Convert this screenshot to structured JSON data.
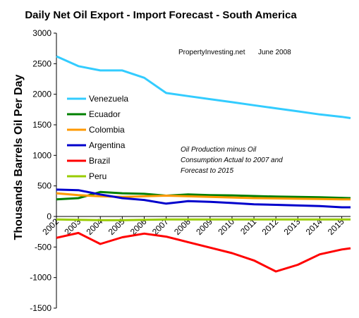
{
  "chart_data": {
    "type": "line",
    "title": "Daily Net Oil Export - Import Forecast - South America",
    "ylabel": "Thousands Barrels Oil Per Day",
    "ylim": [
      -1500,
      3000
    ],
    "yticks": [
      -1500,
      -1000,
      -500,
      0,
      500,
      1000,
      1500,
      2000,
      2500,
      3000
    ],
    "x": [
      2002,
      2003,
      2004,
      2005,
      2006,
      2007,
      2008,
      2009,
      2010,
      2011,
      2012,
      2013,
      2014,
      2015
    ],
    "xtick_labels": [
      "2002",
      "2003",
      "2004",
      "2005",
      "2006",
      "2007",
      "2008",
      "2009",
      "2010",
      "2011",
      "2012",
      "2013",
      "2014",
      "2015"
    ],
    "legend_position": "left",
    "series": [
      {
        "name": "Venezuela",
        "color": "#33ccff",
        "x": [
          2002,
          2003,
          2004,
          2005,
          2006,
          2007,
          2008,
          2009,
          2010,
          2011,
          2012,
          2013,
          2014,
          2015,
          2015.4
        ],
        "values": [
          2620,
          2460,
          2390,
          2390,
          2270,
          2020,
          1970,
          1920,
          1870,
          1820,
          1770,
          1720,
          1670,
          1630,
          1610
        ]
      },
      {
        "name": "Ecuador",
        "color": "#008000",
        "x": [
          2002,
          2003,
          2004,
          2005,
          2006,
          2007,
          2008,
          2009,
          2010,
          2011,
          2012,
          2013,
          2014,
          2015,
          2015.4
        ],
        "values": [
          280,
          300,
          400,
          380,
          370,
          340,
          360,
          350,
          345,
          335,
          325,
          320,
          315,
          305,
          300
        ]
      },
      {
        "name": "Colombia",
        "color": "#ff9900",
        "x": [
          2002,
          2003,
          2004,
          2005,
          2006,
          2007,
          2008,
          2009,
          2010,
          2011,
          2012,
          2013,
          2014,
          2015,
          2015.4
        ],
        "values": [
          380,
          350,
          330,
          320,
          330,
          340,
          330,
          320,
          310,
          300,
          295,
          290,
          285,
          280,
          280
        ]
      },
      {
        "name": "Argentina",
        "color": "#0000cc",
        "x": [
          2002,
          2003,
          2004,
          2005,
          2006,
          2007,
          2008,
          2009,
          2010,
          2011,
          2012,
          2013,
          2014,
          2015,
          2015.4
        ],
        "values": [
          440,
          430,
          360,
          300,
          270,
          210,
          250,
          240,
          220,
          200,
          190,
          180,
          170,
          150,
          150
        ]
      },
      {
        "name": "Brazil",
        "color": "#ff0000",
        "x": [
          2002,
          2003,
          2004,
          2005,
          2006,
          2007,
          2008,
          2009,
          2010,
          2011,
          2012,
          2013,
          2014,
          2015,
          2015.4
        ],
        "values": [
          -350,
          -270,
          -450,
          -340,
          -280,
          -330,
          -420,
          -510,
          -600,
          -720,
          -900,
          -790,
          -620,
          -540,
          -520
        ]
      },
      {
        "name": "Peru",
        "color": "#99cc00",
        "x": [
          2002,
          2003,
          2004,
          2005,
          2006,
          2007,
          2008,
          2009,
          2010,
          2011,
          2012,
          2013,
          2014,
          2015,
          2015.4
        ],
        "values": [
          -50,
          -55,
          -60,
          -60,
          -55,
          -50,
          -50,
          -50,
          -50,
          -50,
          -50,
          -50,
          -50,
          -50,
          -50
        ]
      }
    ],
    "annotations": {
      "source": "PropertyInvesting.net",
      "date": "June 2008",
      "note_line1": "Oil Production minus Oil",
      "note_line2": "Consumption Actual to 2007 and",
      "note_line3": "Forecast to 2015"
    }
  }
}
